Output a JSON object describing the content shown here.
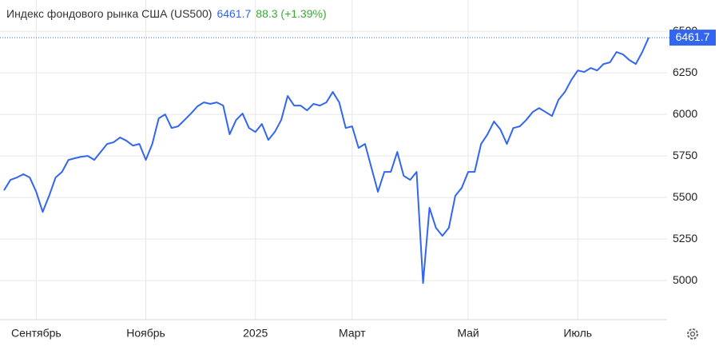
{
  "chart_data": {
    "type": "line",
    "title": "Индекс фондового рынка США (US500)",
    "last_value": 6461.7,
    "change_label": "88.3 (+1.39%)",
    "categories": [
      null,
      null,
      null,
      null,
      null,
      "Сентябрь",
      null,
      null,
      null,
      null,
      null,
      null,
      null,
      null,
      null,
      null,
      null,
      null,
      null,
      null,
      null,
      null,
      "Ноябрь",
      null,
      null,
      null,
      null,
      null,
      null,
      null,
      null,
      null,
      null,
      null,
      null,
      null,
      null,
      null,
      null,
      "2025",
      null,
      null,
      null,
      null,
      null,
      null,
      null,
      null,
      null,
      null,
      null,
      null,
      null,
      null,
      "Март",
      null,
      null,
      null,
      null,
      null,
      null,
      null,
      null,
      null,
      null,
      null,
      null,
      null,
      null,
      null,
      null,
      null,
      "Май",
      null,
      null,
      null,
      null,
      null,
      null,
      null,
      null,
      null,
      null,
      null,
      null,
      null,
      null,
      null,
      null,
      "Июль",
      null,
      null,
      null,
      null,
      null,
      null,
      null,
      null,
      null,
      null,
      null
    ],
    "series": [
      {
        "color": "#3366ee",
        "values": [
          5543,
          5606,
          5620,
          5640,
          5620,
          5534,
          5413,
          5510,
          5620,
          5654,
          5726,
          5736,
          5745,
          5750,
          5726,
          5774,
          5822,
          5832,
          5861,
          5841,
          5812,
          5822,
          5726,
          5822,
          5976,
          6000,
          5918,
          5928,
          5966,
          6005,
          6048,
          6072,
          6063,
          6072,
          6053,
          5880,
          5966,
          6005,
          5918,
          5894,
          5942,
          5846,
          5894,
          5966,
          6111,
          6053,
          6053,
          6024,
          6063,
          6053,
          6072,
          6135,
          6072,
          5918,
          5928,
          5798,
          5822,
          5678,
          5534,
          5654,
          5654,
          5774,
          5630,
          5606,
          5654,
          4985,
          5438,
          5317,
          5269,
          5317,
          5510,
          5558,
          5654,
          5654,
          5822,
          5880,
          5957,
          5909,
          5822,
          5918,
          5928,
          5966,
          6014,
          6038,
          6014,
          5990,
          6087,
          6135,
          6207,
          6264,
          6255,
          6279,
          6264,
          6303,
          6313,
          6375,
          6361,
          6327,
          6303,
          6375,
          6461.7
        ]
      }
    ],
    "ylim": [
      4765,
      6640
    ],
    "yticks": [
      5000,
      5250,
      5500,
      5750,
      6000,
      6250,
      6500
    ],
    "grid": true
  }
}
